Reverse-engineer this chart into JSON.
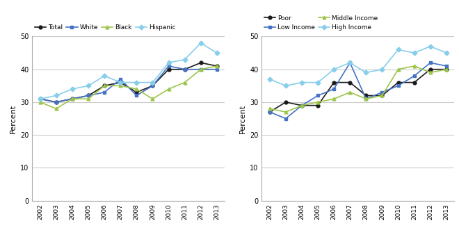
{
  "years": [
    2002,
    2003,
    2004,
    2005,
    2006,
    2007,
    2008,
    2009,
    2010,
    2011,
    2012,
    2013
  ],
  "chart1": {
    "Total": [
      31,
      30,
      31,
      32,
      35,
      36,
      33,
      35,
      40,
      40,
      42,
      41
    ],
    "White": [
      31,
      30,
      31,
      32,
      33,
      37,
      32,
      35,
      41,
      40,
      40,
      40
    ],
    "Black": [
      30,
      28,
      31,
      31,
      35,
      35,
      34,
      31,
      34,
      36,
      40,
      41
    ],
    "Hispanic": [
      31,
      32,
      34,
      35,
      38,
      36,
      36,
      36,
      42,
      43,
      48,
      45
    ]
  },
  "chart1_order": [
    "Total",
    "White",
    "Black",
    "Hispanic"
  ],
  "chart1_colors": {
    "Total": "#1a1a1a",
    "White": "#4472c4",
    "Black": "#9dc54a",
    "Hispanic": "#87ceeb"
  },
  "chart1_markers": {
    "Total": "o",
    "White": "s",
    "Black": "^",
    "Hispanic": "D"
  },
  "chart2": {
    "Poor": [
      27,
      30,
      29,
      29,
      36,
      36,
      32,
      32,
      36,
      36,
      40,
      40
    ],
    "Low Income": [
      27,
      25,
      29,
      32,
      34,
      42,
      31,
      33,
      35,
      38,
      42,
      41
    ],
    "Middle Income": [
      28,
      27,
      29,
      30,
      31,
      33,
      31,
      32,
      40,
      41,
      39,
      40
    ],
    "High Income": [
      37,
      35,
      36,
      36,
      40,
      42,
      39,
      40,
      46,
      45,
      47,
      45
    ]
  },
  "chart2_order": [
    "Poor",
    "Low Income",
    "Middle Income",
    "High Income"
  ],
  "chart2_colors": {
    "Poor": "#1a1a1a",
    "Low Income": "#4472c4",
    "Middle Income": "#9dc54a",
    "High Income": "#87ceeb"
  },
  "chart2_markers": {
    "Poor": "o",
    "Low Income": "s",
    "Middle Income": "^",
    "High Income": "D"
  },
  "ylim": [
    0,
    50
  ],
  "yticks": [
    0,
    10,
    20,
    30,
    40,
    50
  ],
  "ylabel": "Percent",
  "background_color": "#ffffff",
  "grid_color": "#cccccc"
}
